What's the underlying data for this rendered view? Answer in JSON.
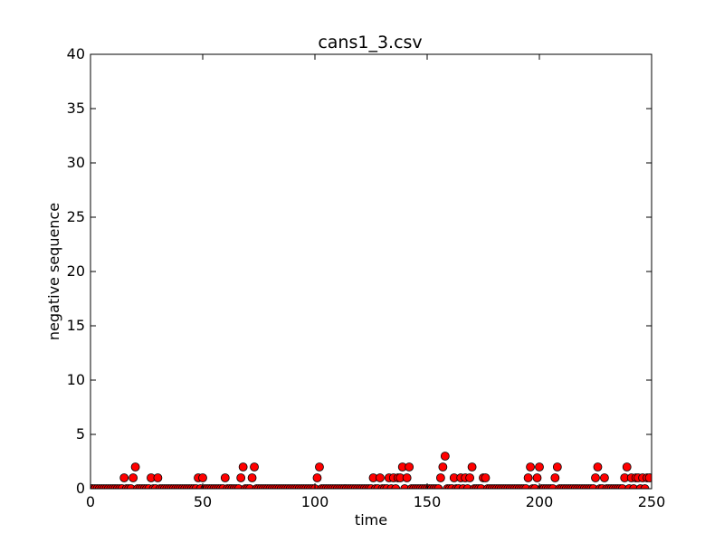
{
  "chart_data": {
    "type": "scatter",
    "title": "cans1_3.csv",
    "xlabel": "time",
    "ylabel": "negative sequence",
    "xlim": [
      0,
      250
    ],
    "ylim": [
      0,
      40
    ],
    "xticks": [
      "0",
      "50",
      "100",
      "150",
      "200",
      "250"
    ],
    "yticks": [
      "0",
      "5",
      "10",
      "15",
      "20",
      "25",
      "30",
      "35",
      "40"
    ],
    "grid": false,
    "marker_color": "#ff0000",
    "marker_edge_color": "#000000",
    "series": [
      {
        "points": [
          [
            0,
            0
          ],
          [
            1,
            0
          ],
          [
            2,
            0
          ],
          [
            3,
            0
          ],
          [
            4,
            0
          ],
          [
            5,
            0
          ],
          [
            6,
            0
          ],
          [
            7,
            0
          ],
          [
            8,
            0
          ],
          [
            9,
            0
          ],
          [
            10,
            0
          ],
          [
            11,
            0
          ],
          [
            12,
            0
          ],
          [
            13,
            0
          ],
          [
            14,
            0
          ],
          [
            15,
            1
          ],
          [
            16,
            0
          ],
          [
            17,
            0
          ],
          [
            18,
            0
          ],
          [
            19,
            1
          ],
          [
            20,
            2
          ],
          [
            21,
            0
          ],
          [
            22,
            0
          ],
          [
            23,
            0
          ],
          [
            24,
            0
          ],
          [
            25,
            0
          ],
          [
            26,
            0
          ],
          [
            27,
            1
          ],
          [
            28,
            0
          ],
          [
            29,
            0
          ],
          [
            30,
            1
          ],
          [
            31,
            0
          ],
          [
            32,
            0
          ],
          [
            33,
            0
          ],
          [
            34,
            0
          ],
          [
            35,
            0
          ],
          [
            36,
            0
          ],
          [
            37,
            0
          ],
          [
            38,
            0
          ],
          [
            39,
            0
          ],
          [
            40,
            0
          ],
          [
            41,
            0
          ],
          [
            42,
            0
          ],
          [
            43,
            0
          ],
          [
            44,
            0
          ],
          [
            45,
            0
          ],
          [
            46,
            0
          ],
          [
            47,
            0
          ],
          [
            48,
            1
          ],
          [
            49,
            0
          ],
          [
            50,
            1
          ],
          [
            51,
            0
          ],
          [
            52,
            0
          ],
          [
            53,
            0
          ],
          [
            54,
            0
          ],
          [
            55,
            0
          ],
          [
            56,
            0
          ],
          [
            57,
            0
          ],
          [
            58,
            0
          ],
          [
            59,
            0
          ],
          [
            60,
            1
          ],
          [
            61,
            0
          ],
          [
            62,
            0
          ],
          [
            63,
            0
          ],
          [
            64,
            0
          ],
          [
            65,
            0
          ],
          [
            66,
            0
          ],
          [
            67,
            1
          ],
          [
            68,
            2
          ],
          [
            69,
            0
          ],
          [
            70,
            0
          ],
          [
            71,
            0
          ],
          [
            72,
            1
          ],
          [
            73,
            2
          ],
          [
            74,
            0
          ],
          [
            75,
            0
          ],
          [
            76,
            0
          ],
          [
            77,
            0
          ],
          [
            78,
            0
          ],
          [
            79,
            0
          ],
          [
            80,
            0
          ],
          [
            81,
            0
          ],
          [
            82,
            0
          ],
          [
            83,
            0
          ],
          [
            84,
            0
          ],
          [
            85,
            0
          ],
          [
            86,
            0
          ],
          [
            87,
            0
          ],
          [
            88,
            0
          ],
          [
            89,
            0
          ],
          [
            90,
            0
          ],
          [
            91,
            0
          ],
          [
            92,
            0
          ],
          [
            93,
            0
          ],
          [
            94,
            0
          ],
          [
            95,
            0
          ],
          [
            96,
            0
          ],
          [
            97,
            0
          ],
          [
            98,
            0
          ],
          [
            99,
            0
          ],
          [
            100,
            0
          ],
          [
            101,
            1
          ],
          [
            102,
            2
          ],
          [
            103,
            0
          ],
          [
            104,
            0
          ],
          [
            105,
            0
          ],
          [
            106,
            0
          ],
          [
            107,
            0
          ],
          [
            108,
            0
          ],
          [
            109,
            0
          ],
          [
            110,
            0
          ],
          [
            111,
            0
          ],
          [
            112,
            0
          ],
          [
            113,
            0
          ],
          [
            114,
            0
          ],
          [
            115,
            0
          ],
          [
            116,
            0
          ],
          [
            117,
            0
          ],
          [
            118,
            0
          ],
          [
            119,
            0
          ],
          [
            120,
            0
          ],
          [
            121,
            0
          ],
          [
            122,
            0
          ],
          [
            123,
            0
          ],
          [
            124,
            0
          ],
          [
            125,
            0
          ],
          [
            126,
            1
          ],
          [
            127,
            0
          ],
          [
            128,
            0
          ],
          [
            129,
            1
          ],
          [
            130,
            0
          ],
          [
            131,
            0
          ],
          [
            132,
            0
          ],
          [
            133,
            1
          ],
          [
            134,
            0
          ],
          [
            135,
            1
          ],
          [
            136,
            0
          ],
          [
            137,
            1
          ],
          [
            138,
            1
          ],
          [
            139,
            2
          ],
          [
            140,
            0
          ],
          [
            141,
            1
          ],
          [
            142,
            2
          ],
          [
            143,
            0
          ],
          [
            144,
            0
          ],
          [
            145,
            0
          ],
          [
            146,
            0
          ],
          [
            147,
            0
          ],
          [
            148,
            0
          ],
          [
            149,
            0
          ],
          [
            150,
            0
          ],
          [
            151,
            0
          ],
          [
            152,
            0
          ],
          [
            153,
            0
          ],
          [
            154,
            0
          ],
          [
            155,
            0
          ],
          [
            156,
            1
          ],
          [
            157,
            2
          ],
          [
            158,
            3
          ],
          [
            159,
            0
          ],
          [
            160,
            0
          ],
          [
            161,
            0
          ],
          [
            162,
            1
          ],
          [
            163,
            0
          ],
          [
            164,
            0
          ],
          [
            165,
            1
          ],
          [
            166,
            0
          ],
          [
            167,
            1
          ],
          [
            168,
            0
          ],
          [
            169,
            1
          ],
          [
            170,
            2
          ],
          [
            171,
            0
          ],
          [
            172,
            0
          ],
          [
            173,
            0
          ],
          [
            174,
            0
          ],
          [
            175,
            1
          ],
          [
            176,
            1
          ],
          [
            177,
            0
          ],
          [
            178,
            0
          ],
          [
            179,
            0
          ],
          [
            180,
            0
          ],
          [
            181,
            0
          ],
          [
            182,
            0
          ],
          [
            183,
            0
          ],
          [
            184,
            0
          ],
          [
            185,
            0
          ],
          [
            186,
            0
          ],
          [
            187,
            0
          ],
          [
            188,
            0
          ],
          [
            189,
            0
          ],
          [
            190,
            0
          ],
          [
            191,
            0
          ],
          [
            192,
            0
          ],
          [
            193,
            0
          ],
          [
            194,
            0
          ],
          [
            195,
            1
          ],
          [
            196,
            2
          ],
          [
            197,
            0
          ],
          [
            198,
            0
          ],
          [
            199,
            1
          ],
          [
            200,
            2
          ],
          [
            201,
            0
          ],
          [
            202,
            0
          ],
          [
            203,
            0
          ],
          [
            204,
            0
          ],
          [
            205,
            0
          ],
          [
            206,
            0
          ],
          [
            207,
            1
          ],
          [
            208,
            2
          ],
          [
            209,
            0
          ],
          [
            210,
            0
          ],
          [
            211,
            0
          ],
          [
            212,
            0
          ],
          [
            213,
            0
          ],
          [
            214,
            0
          ],
          [
            215,
            0
          ],
          [
            216,
            0
          ],
          [
            217,
            0
          ],
          [
            218,
            0
          ],
          [
            219,
            0
          ],
          [
            220,
            0
          ],
          [
            221,
            0
          ],
          [
            222,
            0
          ],
          [
            223,
            0
          ],
          [
            224,
            0
          ],
          [
            225,
            1
          ],
          [
            226,
            2
          ],
          [
            227,
            0
          ],
          [
            228,
            0
          ],
          [
            229,
            1
          ],
          [
            230,
            0
          ],
          [
            231,
            0
          ],
          [
            232,
            0
          ],
          [
            233,
            0
          ],
          [
            234,
            0
          ],
          [
            235,
            0
          ],
          [
            236,
            0
          ],
          [
            237,
            0
          ],
          [
            238,
            1
          ],
          [
            239,
            2
          ],
          [
            240,
            0
          ],
          [
            241,
            1
          ],
          [
            242,
            0
          ],
          [
            243,
            1
          ],
          [
            244,
            1
          ],
          [
            245,
            0
          ],
          [
            246,
            1
          ],
          [
            247,
            0
          ],
          [
            248,
            1
          ],
          [
            249,
            1
          ]
        ]
      }
    ]
  }
}
